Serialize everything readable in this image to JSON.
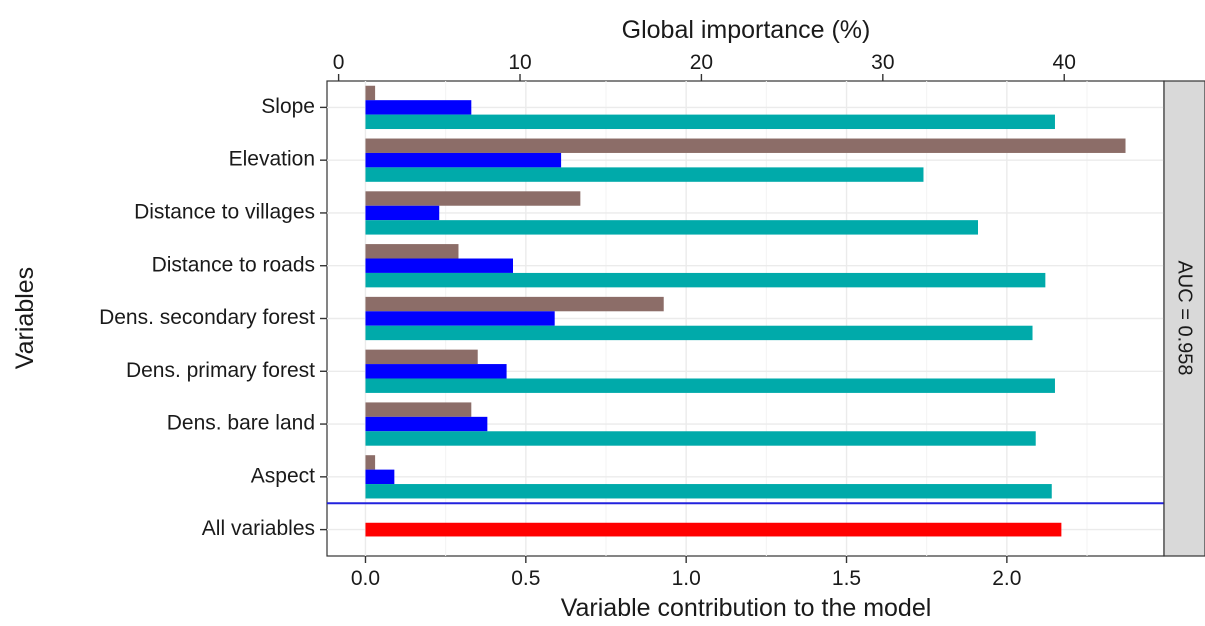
{
  "chart_data": {
    "type": "bar",
    "orientation": "horizontal",
    "y_axis_label": "Variables",
    "x_axis_bottom_label": "Variable contribution to the model",
    "x_axis_top_label": "Global importance (%)",
    "x_bottom_ticks": [
      "0.0",
      "0.5",
      "1.0",
      "1.5",
      "2.0"
    ],
    "x_bottom_tick_values": [
      0,
      0.5,
      1.0,
      1.5,
      2.0
    ],
    "x_top_ticks": [
      "0",
      "10",
      "20",
      "30",
      "40"
    ],
    "x_top_tick_values": [
      0,
      10,
      20,
      30,
      40
    ],
    "x_bottom_range": [
      -0.12,
      2.49
    ],
    "x_top_range": [
      -0.64,
      45.5
    ],
    "grid": true,
    "facet_label": "AUC = 0.958",
    "categories": [
      "Slope",
      "Elevation",
      "Distance to villages",
      "Distance to roads",
      "Dens. secondary forest",
      "Dens. primary forest",
      "Dens. bare land",
      "Aspect"
    ],
    "series": [
      {
        "values": [
          0.03,
          2.37,
          0.67,
          0.29,
          0.93,
          0.35,
          0.33,
          0.03
        ],
        "color": "#8c6d68"
      },
      {
        "values": [
          0.33,
          0.61,
          0.23,
          0.46,
          0.59,
          0.44,
          0.38,
          0.09
        ],
        "color": "#0000ff"
      },
      {
        "values": [
          2.15,
          1.74,
          1.91,
          2.12,
          2.08,
          2.15,
          2.09,
          2.14
        ],
        "color": "#00aaaa"
      }
    ],
    "all_variables": {
      "label": "All variables",
      "value": 2.17,
      "color": "#ff0000"
    },
    "separator_color": "#2222dd"
  }
}
